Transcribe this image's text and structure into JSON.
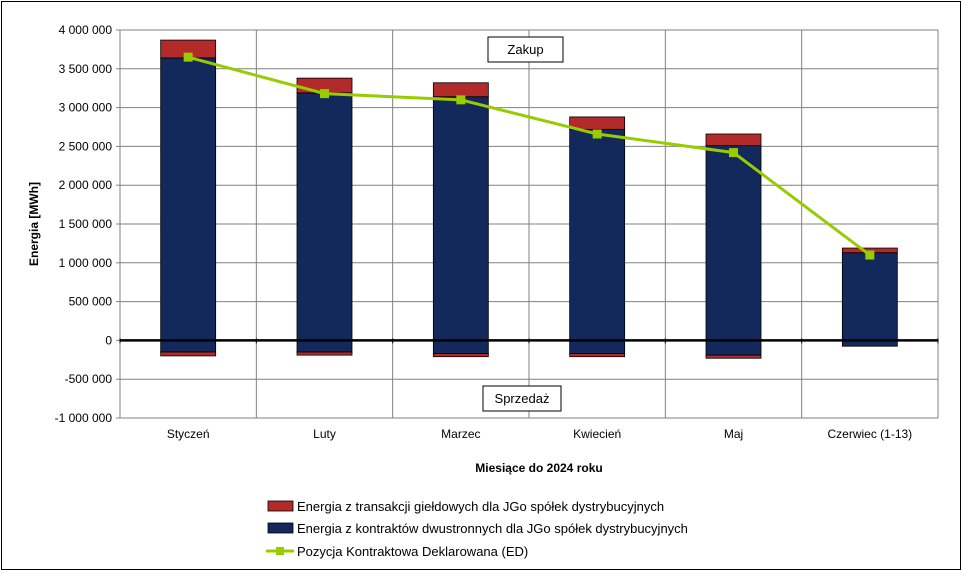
{
  "chart_data": {
    "type": "bar",
    "stacked": true,
    "categories": [
      "Styczeń",
      "Luty",
      "Marzec",
      "Kwiecień",
      "Maj",
      "Czerwiec (1-13)"
    ],
    "series": [
      {
        "name": "Energia z kontraktów dwustronnych dla JGo spółek dystrybucyjnych",
        "color": "#13285b",
        "positive": [
          3640000,
          3190000,
          3140000,
          2720000,
          2510000,
          1130000
        ],
        "negative": [
          -150000,
          -150000,
          -170000,
          -170000,
          -190000,
          -75000
        ]
      },
      {
        "name": "Energia z transakcji giełdowych dla JGo spółek dystrybucyjnych",
        "color": "#b22a2a",
        "positive": [
          230000,
          190000,
          180000,
          160000,
          150000,
          60000
        ],
        "negative": [
          -50000,
          -40000,
          -40000,
          -40000,
          -40000,
          0
        ]
      },
      {
        "name": "Pozycja Kontraktowa Deklarowana (ED)",
        "type": "line",
        "color": "#99cc00",
        "values": [
          3650000,
          3180000,
          3100000,
          2660000,
          2420000,
          1100000
        ]
      }
    ],
    "ylabel": "Energia [MWh]",
    "xlabel": "Miesiące do 2024  roku",
    "ylim": [
      -1000000,
      4000000
    ],
    "yticks": [
      4000000,
      3500000,
      3000000,
      2500000,
      2000000,
      1500000,
      1000000,
      500000,
      0,
      -500000,
      -1000000
    ],
    "ytick_labels": [
      "4 000 000",
      "3 500 000",
      "3 000 000",
      "2 500 000",
      "2 000 000",
      "1 500 000",
      "1 000 000",
      "500 000",
      "0",
      "-500 000",
      "-1 000 000"
    ],
    "grid": true,
    "legend_position": "bottom",
    "annotations": {
      "top": "Zakup",
      "bottom": "Sprzedaż"
    }
  }
}
